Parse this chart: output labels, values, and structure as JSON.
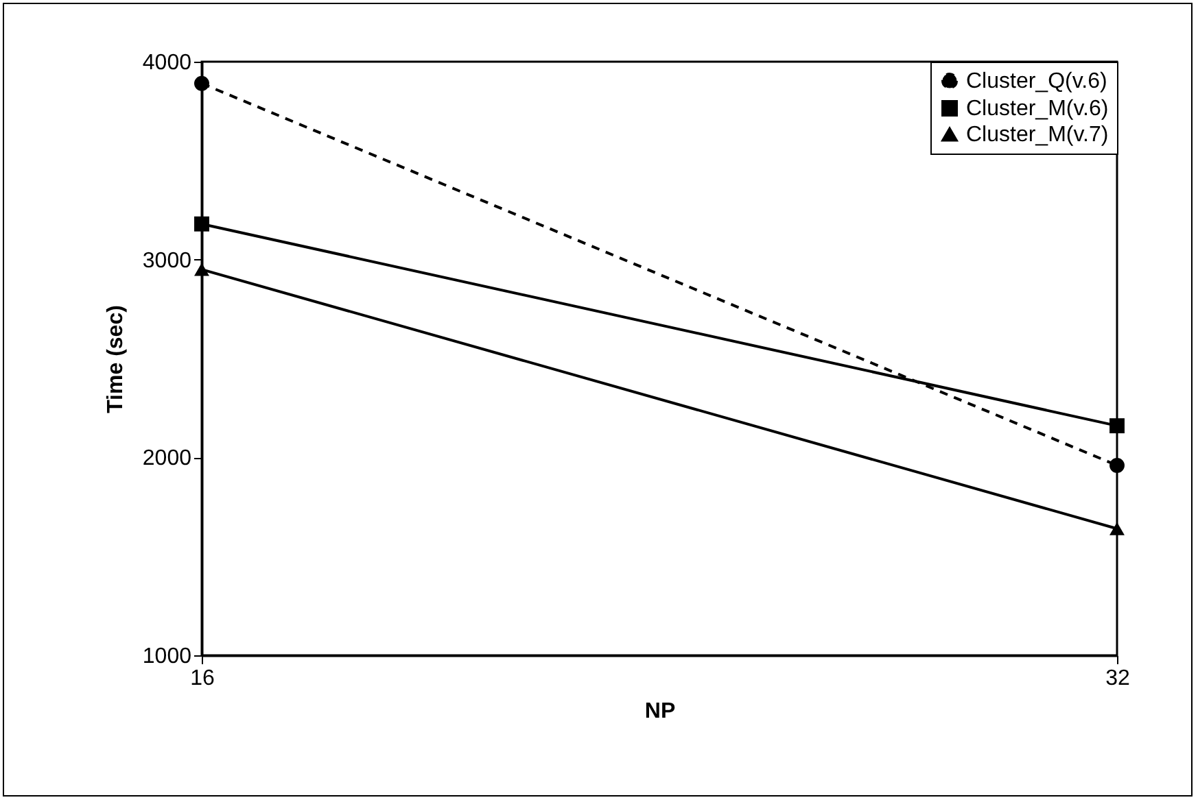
{
  "chart_data": {
    "type": "line",
    "xlabel": "NP",
    "ylabel": "Time (sec)",
    "x": [
      16,
      32
    ],
    "xlim": [
      16,
      32
    ],
    "xticks": [
      16,
      32
    ],
    "ylim": [
      1000,
      4000
    ],
    "yticks": [
      1000,
      2000,
      3000,
      4000
    ],
    "grid": false,
    "legend": "top right",
    "series": [
      {
        "name": "Cluster_Q(v.6)",
        "color": "#000000",
        "marker": "circle",
        "line_style": "dashed",
        "values": [
          3890,
          1960
        ]
      },
      {
        "name": "Cluster_M(v.6)",
        "color": "#000000",
        "marker": "square",
        "line_style": "solid",
        "values": [
          3180,
          2160
        ]
      },
      {
        "name": "Cluster_M(v.7)",
        "color": "#000000",
        "marker": "triangle",
        "line_style": "solid",
        "values": [
          2950,
          1640
        ]
      }
    ]
  }
}
